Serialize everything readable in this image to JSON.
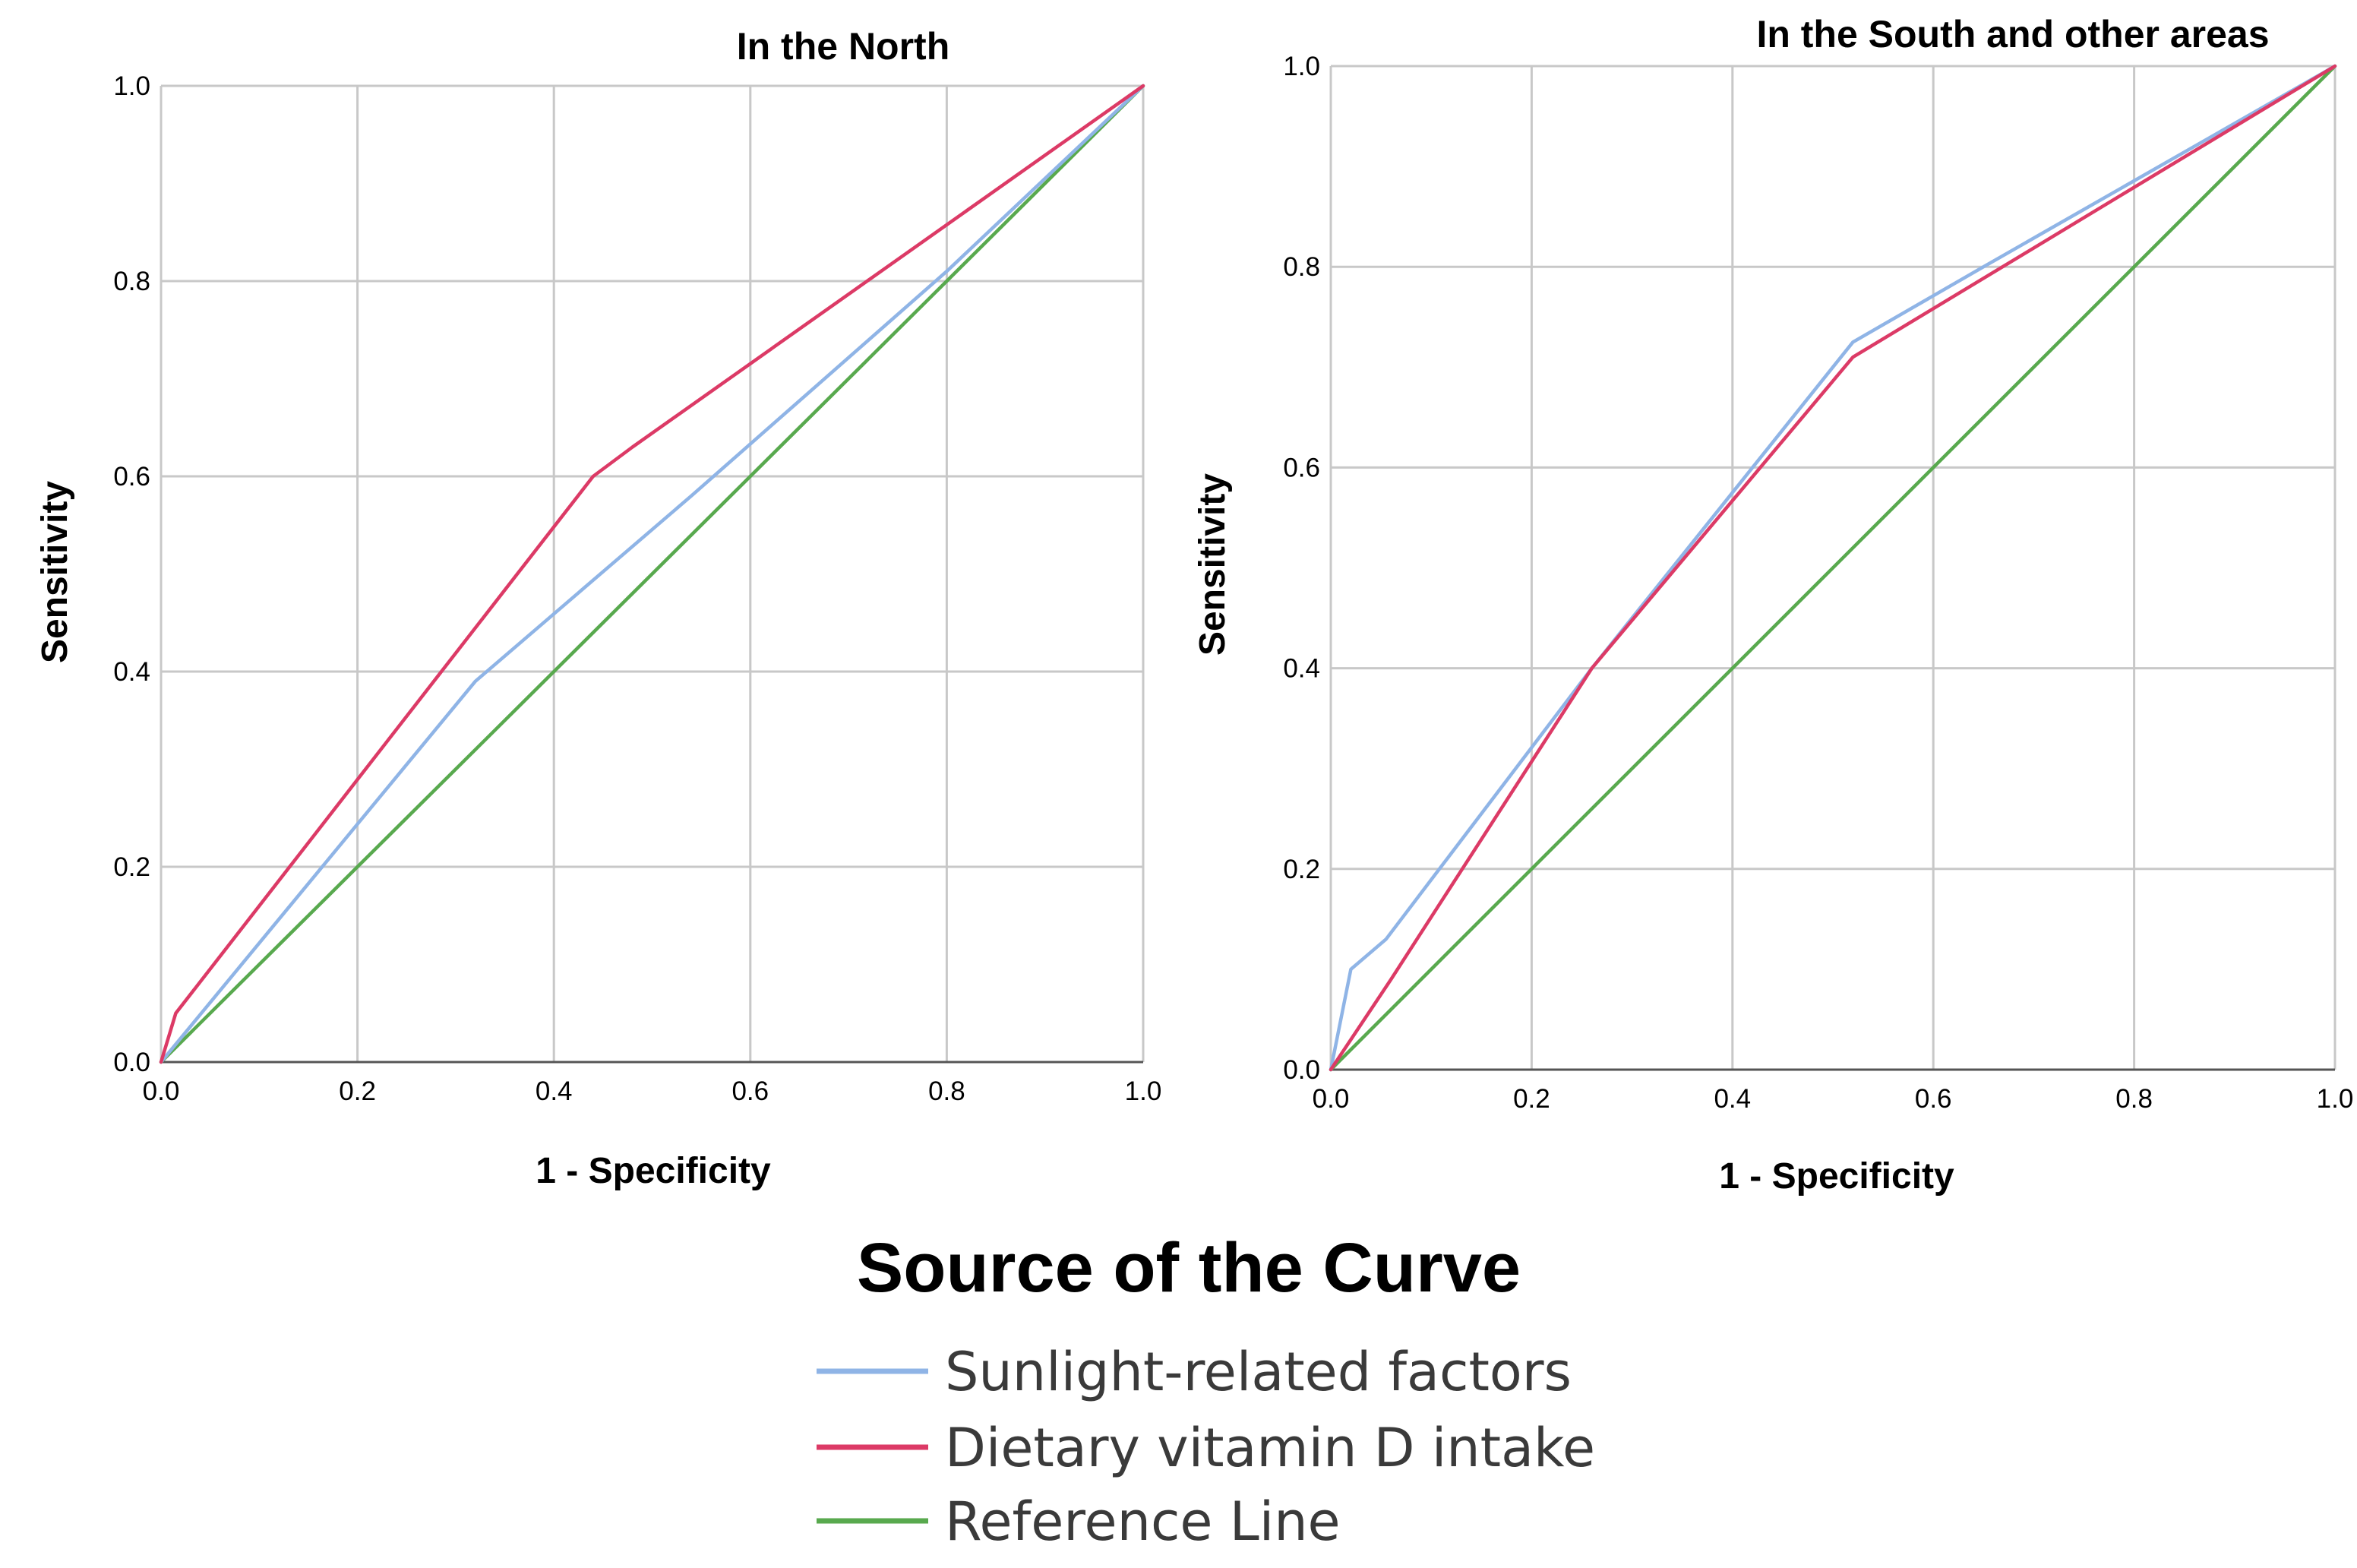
{
  "colors": {
    "sunlight": "#8fb4e6",
    "dietary": "#dc3a66",
    "reference": "#58a94e"
  },
  "legend": {
    "title": "Source of the Curve",
    "entries": [
      {
        "key": "sunlight",
        "label": "Sunlight-related factors"
      },
      {
        "key": "dietary",
        "label": "Dietary vitamin D intake"
      },
      {
        "key": "reference",
        "label": "Reference Line"
      }
    ]
  },
  "chart_data": [
    {
      "type": "line",
      "title": "In the North",
      "xlabel": "1 - Specificity",
      "ylabel": "Sensitivity",
      "xlim": [
        0,
        1
      ],
      "ylim": [
        0,
        1
      ],
      "xticks": [
        "0.0",
        "0.2",
        "0.4",
        "0.6",
        "0.8",
        "1.0"
      ],
      "yticks": [
        "0.0",
        "0.2",
        "0.4",
        "0.6",
        "0.8",
        "1.0"
      ],
      "grid": true,
      "series": [
        {
          "key": "sunlight",
          "name": "Sunlight-related factors",
          "points": [
            [
              0,
              0
            ],
            [
              0.32,
              0.39
            ],
            [
              0.54,
              0.58
            ],
            [
              0.8,
              0.81
            ],
            [
              1,
              1
            ]
          ]
        },
        {
          "key": "dietary",
          "name": "Dietary vitamin D intake",
          "points": [
            [
              0,
              0
            ],
            [
              0.015,
              0.05
            ],
            [
              0.44,
              0.6
            ],
            [
              0.48,
              0.63
            ],
            [
              1,
              1
            ]
          ]
        },
        {
          "key": "reference",
          "name": "Reference Line",
          "points": [
            [
              0,
              0
            ],
            [
              1,
              1
            ]
          ]
        }
      ]
    },
    {
      "type": "line",
      "title": "In the South and other areas",
      "xlabel": "1 - Specificity",
      "ylabel": "Sensitivity",
      "xlim": [
        0,
        1
      ],
      "ylim": [
        0,
        1
      ],
      "xticks": [
        "0.0",
        "0.2",
        "0.4",
        "0.6",
        "0.8",
        "1.0"
      ],
      "yticks": [
        "0.0",
        "0.2",
        "0.4",
        "0.6",
        "0.8",
        "1.0"
      ],
      "grid": true,
      "series": [
        {
          "key": "sunlight",
          "name": "Sunlight-related factors",
          "points": [
            [
              0,
              0
            ],
            [
              0.02,
              0.1
            ],
            [
              0.055,
              0.13
            ],
            [
              0.26,
              0.4
            ],
            [
              0.52,
              0.725
            ],
            [
              0.65,
              0.8
            ],
            [
              1,
              1
            ]
          ]
        },
        {
          "key": "dietary",
          "name": "Dietary vitamin D intake",
          "points": [
            [
              0,
              0
            ],
            [
              0.06,
              0.09
            ],
            [
              0.26,
              0.4
            ],
            [
              0.52,
              0.71
            ],
            [
              1,
              1
            ]
          ]
        },
        {
          "key": "reference",
          "name": "Reference Line",
          "points": [
            [
              0,
              0
            ],
            [
              1,
              1
            ]
          ]
        }
      ]
    }
  ]
}
